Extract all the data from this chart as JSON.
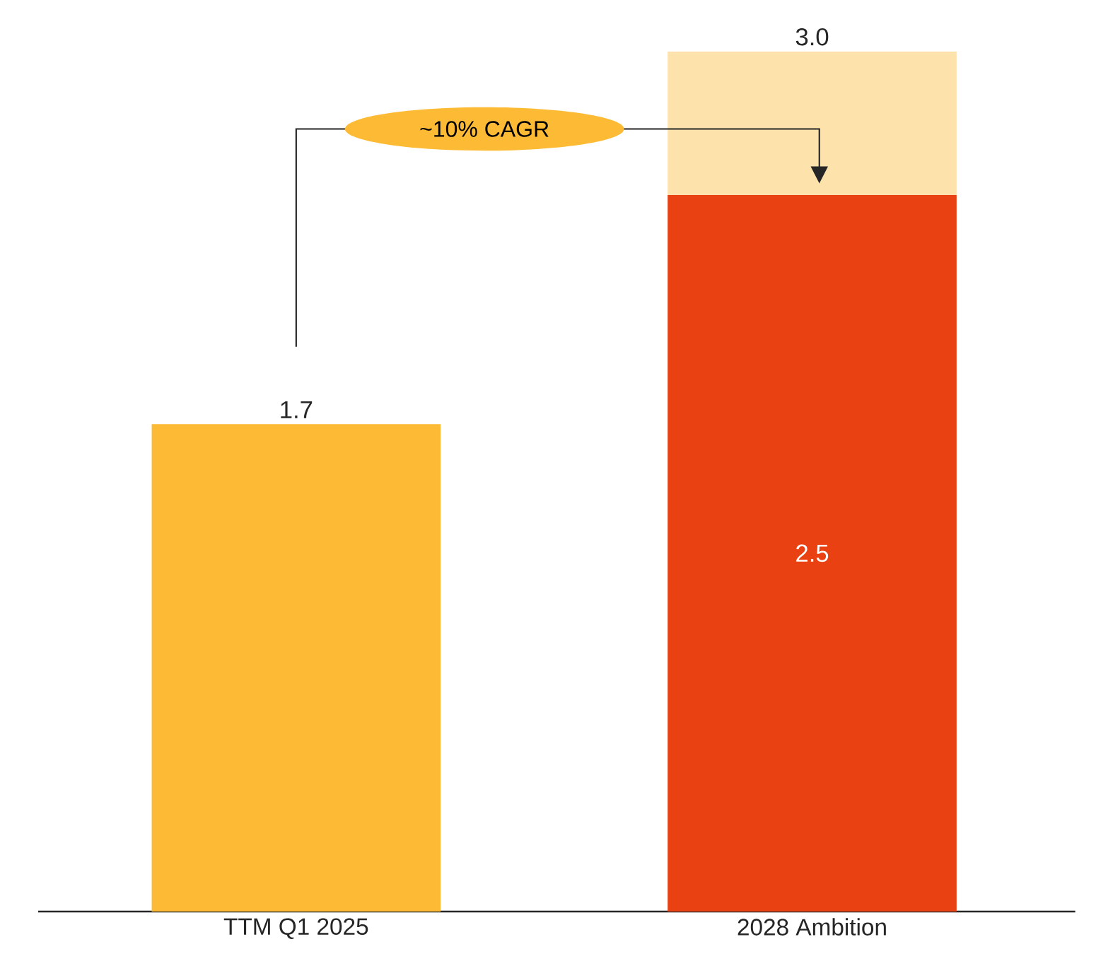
{
  "chart_data": {
    "type": "bar",
    "stacked": true,
    "categories": [
      "TTM Q1 2025",
      "2028 Ambition"
    ],
    "series": [
      {
        "colors": [
          "#fdbb35",
          "#ea4112"
        ],
        "values": [
          1.7,
          2.5
        ],
        "value_labels": [
          "1.7",
          "2.5"
        ]
      },
      {
        "color": "#fde3ab",
        "values": [
          null,
          0.5
        ]
      }
    ],
    "totals": [
      null,
      "3.0"
    ],
    "tick_labels": "x",
    "annotations": [
      "~10% CAGR"
    ]
  }
}
